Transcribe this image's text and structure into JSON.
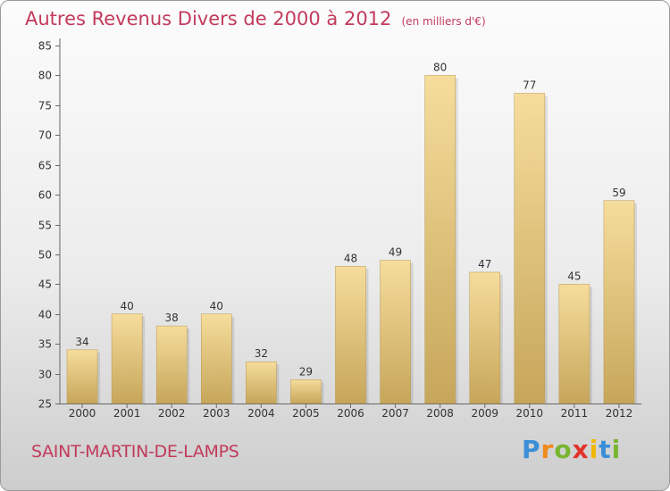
{
  "title": "Autres Revenus Divers de 2000 à 2012",
  "subtitle": "(en milliers d'€)",
  "location": "SAINT-MARTIN-DE-LAMPS",
  "logo": {
    "letters": [
      "P",
      "r",
      "o",
      "x",
      "i",
      "t",
      "i"
    ],
    "colors": [
      "#3a8fd8",
      "#f08a1c",
      "#79b531",
      "#e0332c",
      "#f2b705",
      "#3a8fd8",
      "#79b531"
    ]
  },
  "colors": {
    "bar_light": "#f5dc9a",
    "bar_dark": "#c9a95d",
    "title": "#c23b5b",
    "axis": "#555555",
    "grid": "#d8d8d8"
  },
  "chart_data": {
    "type": "bar",
    "title": "Autres Revenus Divers de 2000 à 2012",
    "categories": [
      "2000",
      "2001",
      "2002",
      "2003",
      "2004",
      "2005",
      "2006",
      "2007",
      "2008",
      "2009",
      "2010",
      "2011",
      "2012"
    ],
    "values": [
      34,
      40,
      38,
      40,
      32,
      29,
      48,
      49,
      80,
      47,
      77,
      45,
      59
    ],
    "ylim": [
      25,
      85
    ],
    "yticks": [
      25,
      30,
      35,
      40,
      45,
      50,
      55,
      60,
      65,
      70,
      75,
      80,
      85
    ],
    "grid": false,
    "legend": "none"
  }
}
